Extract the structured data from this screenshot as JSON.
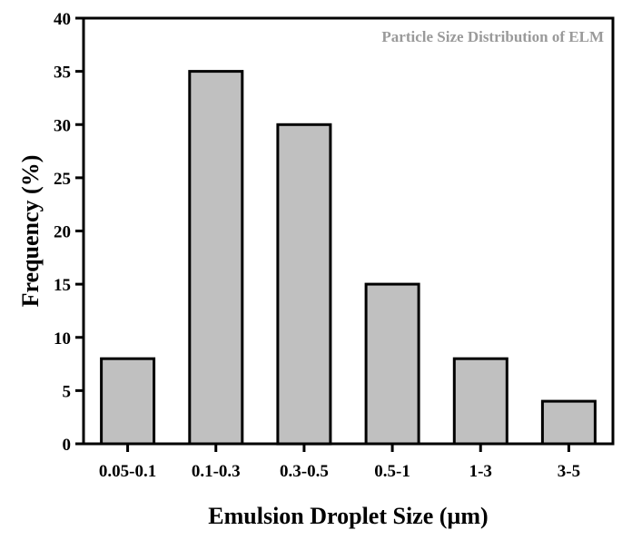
{
  "chart_data": {
    "type": "bar",
    "title": "Particle Size Distribution of ELM",
    "xlabel": "Emulsion Droplet Size (µm)",
    "ylabel": "Frequency (%)",
    "categories": [
      "0.05-0.1",
      "0.1-0.3",
      "0.3-0.5",
      "0.5-1",
      "1-3",
      "3-5"
    ],
    "values": [
      8,
      35,
      30,
      15,
      8,
      4
    ],
    "ylim": [
      0,
      40
    ],
    "yticks": [
      0,
      5,
      10,
      15,
      20,
      25,
      30,
      35,
      40
    ],
    "grid": false,
    "legend": "none",
    "colors": {
      "bar_fill": "#c0c0c0",
      "bar_stroke": "#000000",
      "title": "#9a9a9a",
      "axis": "#000000"
    }
  }
}
